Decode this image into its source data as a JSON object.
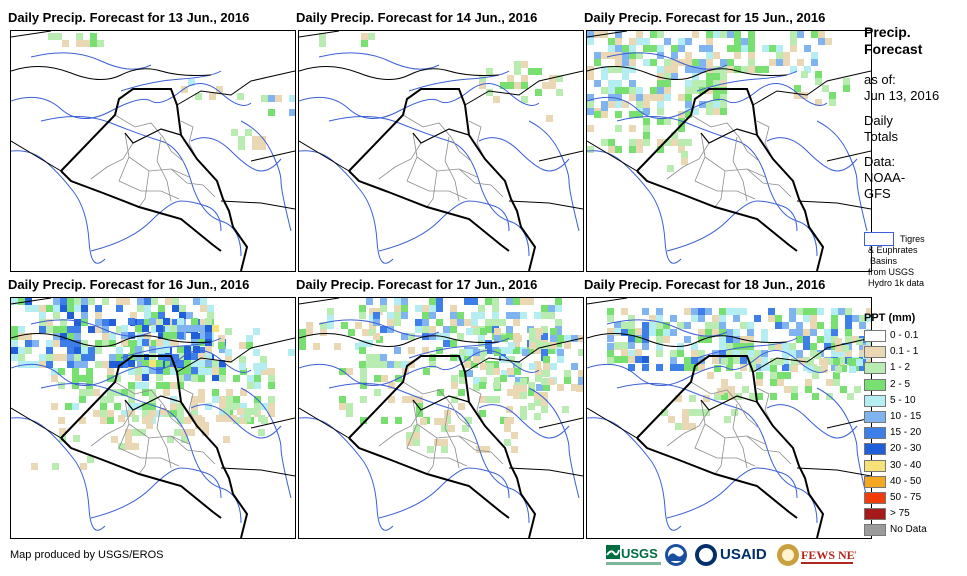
{
  "panels": [
    {
      "title": "Daily Precip. Forecast for 13 Jun., 2016"
    },
    {
      "title": "Daily Precip. Forecast for 14 Jun., 2016"
    },
    {
      "title": "Daily Precip. Forecast for 15 Jun., 2016"
    },
    {
      "title": "Daily Precip. Forecast for 16 Jun., 2016"
    },
    {
      "title": "Daily Precip. Forecast for 17 Jun., 2016"
    },
    {
      "title": "Daily Precip. Forecast for 18 Jun., 2016"
    }
  ],
  "legend": {
    "title_line1": "Precip.",
    "title_line2": "Forecast",
    "asof_label": "as of:",
    "asof_date": "Jun 13, 2016",
    "daily_line1": "Daily",
    "daily_line2": "Totals",
    "data_line1": "Data:",
    "data_line2": "NOAA-",
    "data_line3": "GFS",
    "basins_line1": "Tigres",
    "basins_line2": "& Euphrates",
    "basins_line3": "Basins",
    "basins_line4": "from USGS",
    "basins_line5": "Hydro 1k data",
    "ppt_title": "PPT (mm)",
    "classes": [
      {
        "label": "0 - 0.1",
        "color": "#ffffff"
      },
      {
        "label": "0.1 - 1",
        "color": "#ead7b4"
      },
      {
        "label": "1 - 2",
        "color": "#b9ecb0"
      },
      {
        "label": "2 - 5",
        "color": "#78e070"
      },
      {
        "label": "5 - 10",
        "color": "#b4eef2"
      },
      {
        "label": "10 - 15",
        "color": "#7fb4f0"
      },
      {
        "label": "15 - 20",
        "color": "#3d7ee8"
      },
      {
        "label": "20 - 30",
        "color": "#1f5fd9"
      },
      {
        "label": "30 - 40",
        "color": "#f7e27a"
      },
      {
        "label": "40 - 50",
        "color": "#f5a623"
      },
      {
        "label": "50 - 75",
        "color": "#f03c0a"
      },
      {
        "label": "> 75",
        "color": "#a61a1a"
      },
      {
        "label": "No Data",
        "color": "#9b9b9b"
      }
    ]
  },
  "footer": {
    "credit": "Map produced by USGS/EROS",
    "logos": [
      "USGS",
      "NOAA",
      "USAID",
      "FEWS NET"
    ]
  }
}
